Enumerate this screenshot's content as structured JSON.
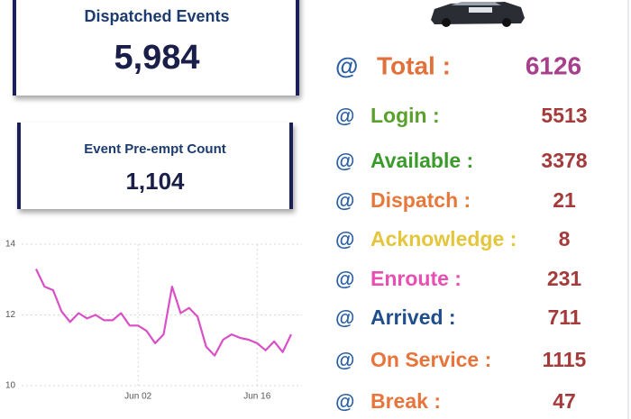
{
  "cards": [
    {
      "title": "Dispatched Events",
      "value": "5,984"
    },
    {
      "title": "Event Pre-empt Count",
      "value": "1,104"
    }
  ],
  "status": {
    "prefix": "@",
    "value_color": "#a43a3a",
    "prefix_color": "#2b5fa3",
    "items": [
      {
        "label": "Total :",
        "value": 6126,
        "color": "#e2703a",
        "value_color": "#a83f8a"
      },
      {
        "label": "Login :",
        "value": 5513,
        "color": "#5aa02c"
      },
      {
        "label": "Available :",
        "value": 3378,
        "color": "#3a9b2b"
      },
      {
        "label": "Dispatch :",
        "value": 21,
        "color": "#e6783c"
      },
      {
        "label": "Acknowledge :",
        "value": 8,
        "color": "#e5c63b"
      },
      {
        "label": "Enroute :",
        "value": 231,
        "color": "#e94fb3"
      },
      {
        "label": "Arrived :",
        "value": 711,
        "color": "#1f4e8c"
      },
      {
        "label": "On Service :",
        "value": 1115,
        "color": "#e8743b"
      },
      {
        "label": "Break :",
        "value": 47,
        "color": "#e8743b"
      }
    ]
  },
  "chart_data": {
    "type": "line",
    "categories": [
      null,
      null,
      null,
      null,
      null,
      null,
      null,
      null,
      null,
      null,
      null,
      null,
      "Jun 02",
      null,
      null,
      null,
      null,
      null,
      null,
      null,
      null,
      null,
      null,
      null,
      null,
      null,
      "Jun 16",
      null,
      null,
      null,
      null
    ],
    "series": [
      {
        "color": "#d94fc6",
        "values": [
          13.3,
          12.8,
          12.7,
          12.1,
          11.8,
          12.05,
          11.9,
          12.0,
          11.85,
          11.85,
          12.05,
          11.7,
          11.7,
          11.55,
          11.2,
          11.45,
          12.8,
          12.05,
          12.2,
          11.95,
          11.1,
          10.85,
          11.3,
          11.45,
          11.35,
          11.3,
          11.2,
          11.0,
          11.25,
          10.95,
          11.45
        ]
      }
    ],
    "ylim": [
      10,
      14
    ],
    "yticks": [
      10,
      12,
      14
    ],
    "grid": true
  }
}
